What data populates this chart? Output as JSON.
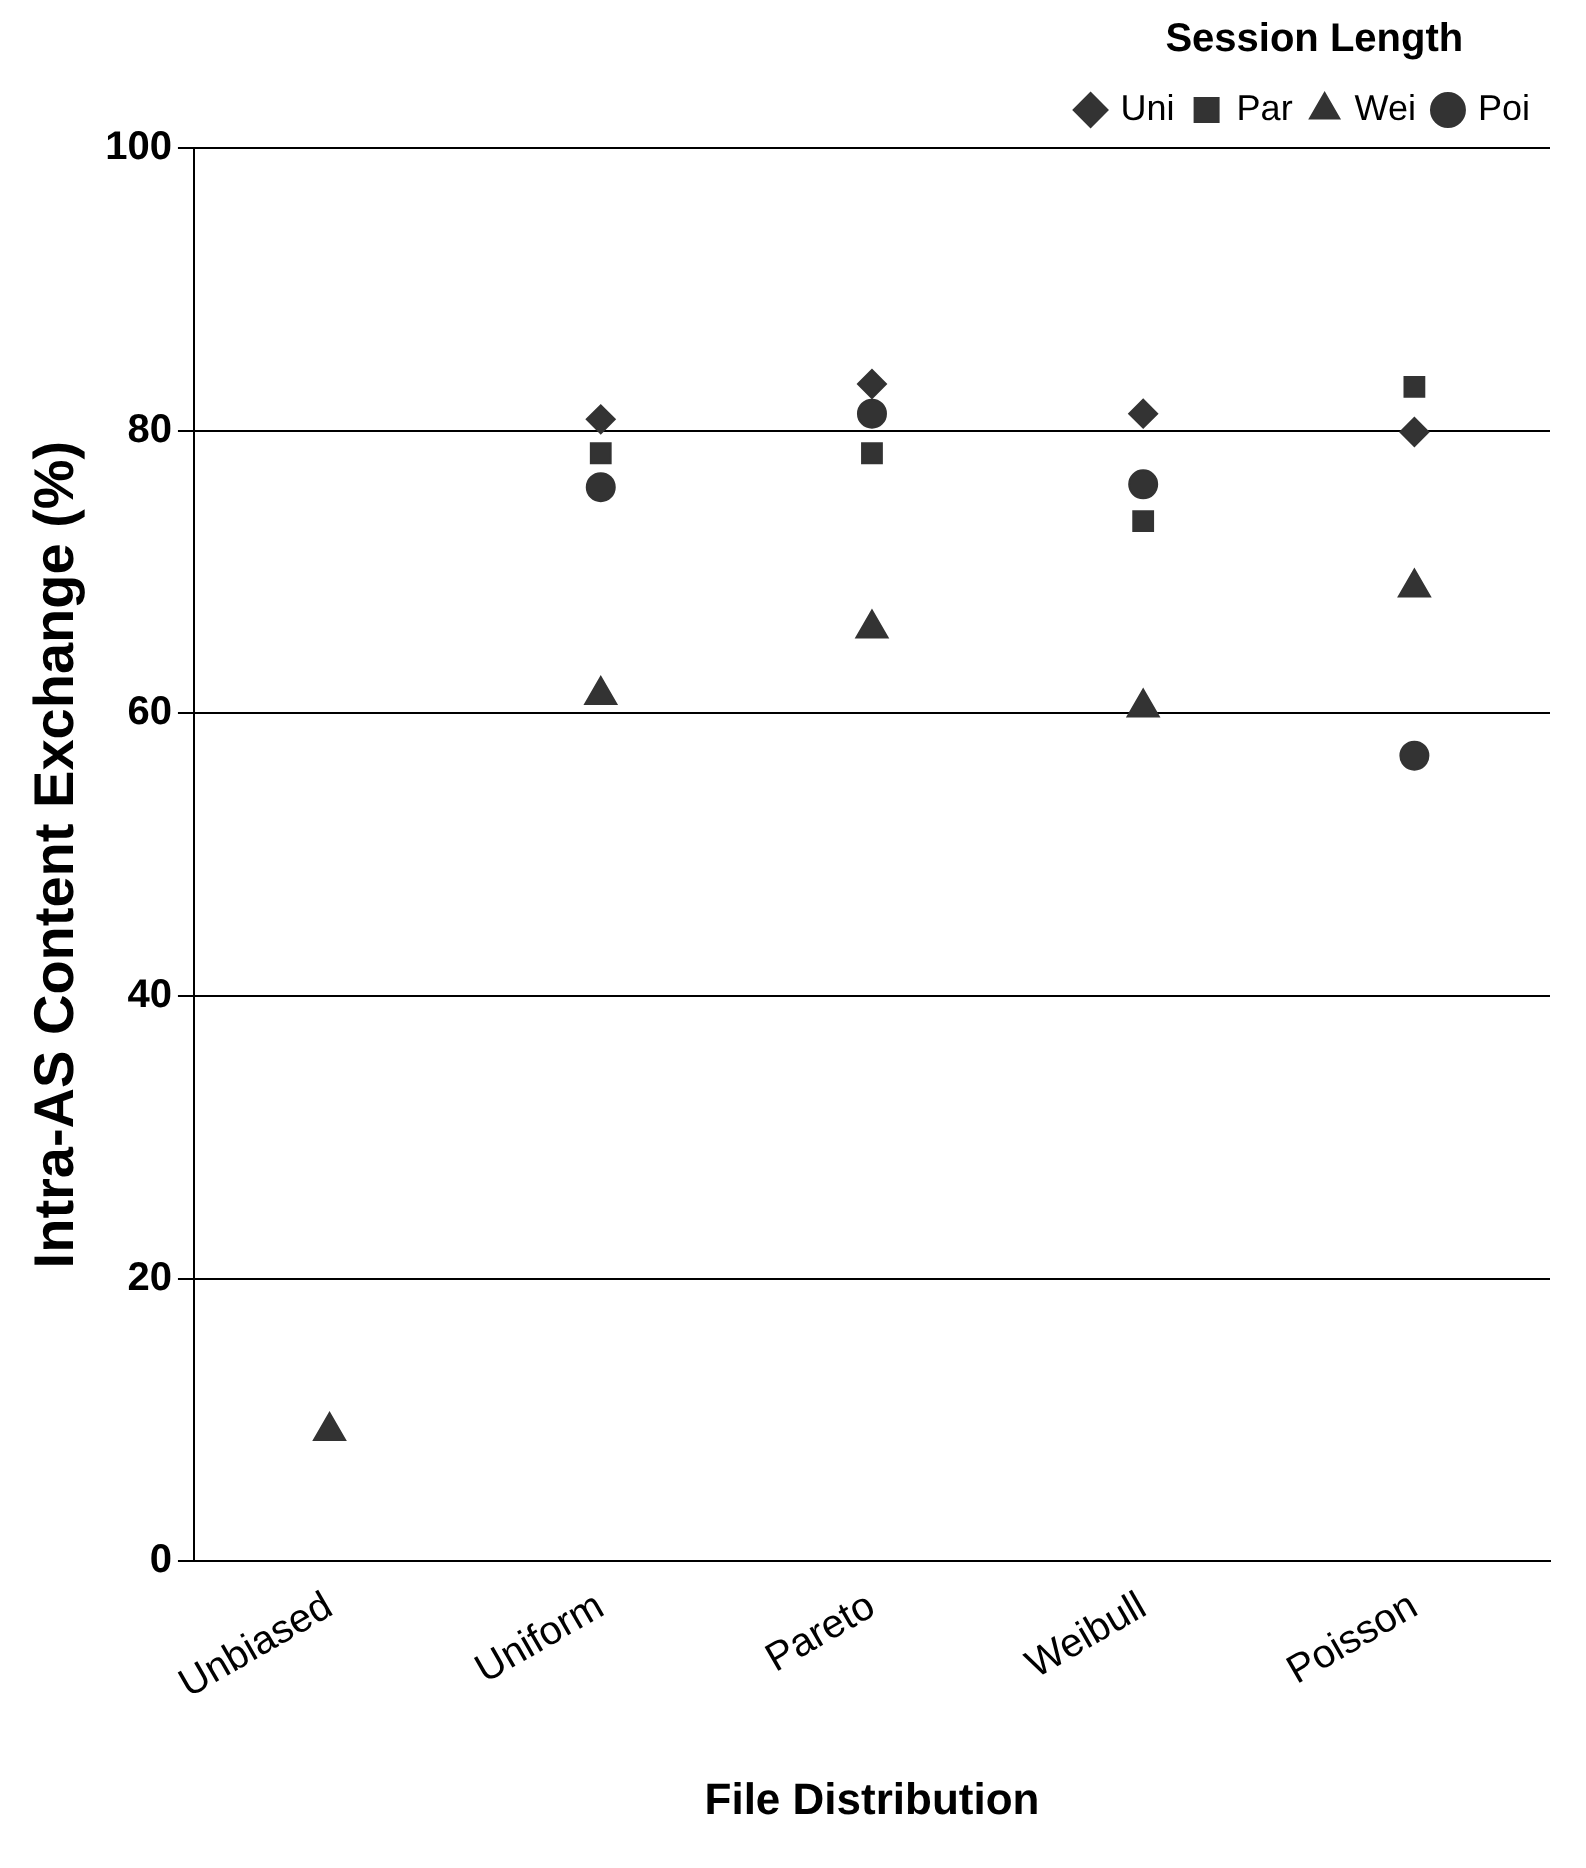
{
  "chart_data": {
    "type": "scatter",
    "xlabel": "File Distribution",
    "ylabel": "Intra-AS Content Exchange (%)",
    "legend_title": "Session Length",
    "categories": [
      "Unbiased",
      "Uniform",
      "Pareto",
      "Weibull",
      "Poisson"
    ],
    "series": [
      {
        "name": "Uni",
        "color": "#333333",
        "marker": "diamond",
        "values": [
          null,
          80.8,
          83.3,
          81.2,
          79.9
        ]
      },
      {
        "name": "Par",
        "color": "#333333",
        "marker": "square",
        "values": [
          null,
          78.4,
          78.4,
          73.6,
          83.1
        ]
      },
      {
        "name": "Wei",
        "color": "#333333",
        "marker": "triangle",
        "values": [
          9.2,
          61.3,
          66.0,
          60.4,
          68.9
        ]
      },
      {
        "name": "Poi",
        "color": "#333333",
        "marker": "circle",
        "values": [
          null,
          76.0,
          81.2,
          76.2,
          57.0
        ]
      }
    ],
    "ylim": [
      0,
      100
    ],
    "yticks": [
      0,
      20,
      40,
      60,
      80,
      100
    ],
    "grid": "y",
    "legend": "top right"
  }
}
